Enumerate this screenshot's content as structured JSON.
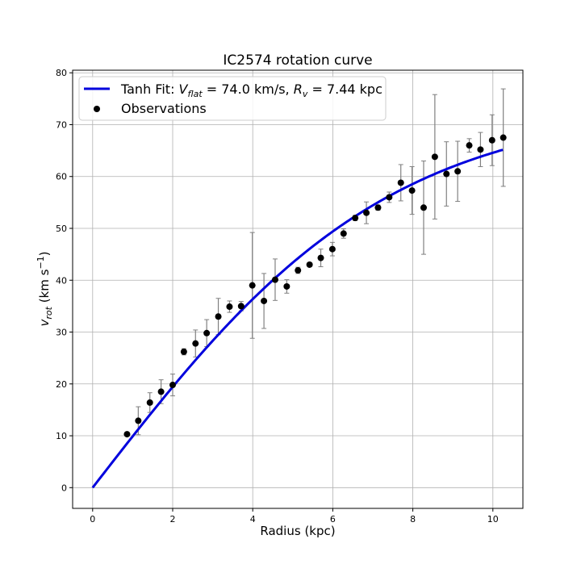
{
  "chart_data": {
    "type": "scatter",
    "title": "IC2574 rotation curve",
    "xlabel": "Radius (kpc)",
    "ylabel": "v_rot (km s^-1)",
    "xlim": [
      -0.5,
      10.75
    ],
    "ylim": [
      -4,
      80.5
    ],
    "x_ticks": [
      0,
      2,
      4,
      6,
      8,
      10
    ],
    "y_ticks": [
      0,
      10,
      20,
      30,
      40,
      50,
      60,
      70,
      80
    ],
    "grid": true,
    "legend_position": "top-left",
    "fit": {
      "name": "Tanh Fit",
      "model": "tanh",
      "V_flat": 74.0,
      "R_v": 7.44,
      "x_max": 10.25,
      "color": "#0000dd"
    },
    "observations": {
      "name": "Observations",
      "color": "#000000",
      "errorbar_color": "#808080",
      "x": [
        0.86,
        1.14,
        1.43,
        1.71,
        2.0,
        2.28,
        2.57,
        2.85,
        3.14,
        3.42,
        3.71,
        3.99,
        4.28,
        4.56,
        4.85,
        5.13,
        5.42,
        5.7,
        5.99,
        6.27,
        6.56,
        6.84,
        7.13,
        7.41,
        7.7,
        7.98,
        8.27,
        8.55,
        8.84,
        9.12,
        9.41,
        9.69,
        9.98,
        10.26
      ],
      "y": [
        10.3,
        12.9,
        16.4,
        18.5,
        19.8,
        26.2,
        27.8,
        29.8,
        33.0,
        34.9,
        35.0,
        39.0,
        36.0,
        40.1,
        38.8,
        41.9,
        43.0,
        44.3,
        46.0,
        49.0,
        52.0,
        53.0,
        54.0,
        56.0,
        58.8,
        57.3,
        54.0,
        63.8,
        60.5,
        61.0,
        66.0,
        65.2,
        67.0,
        67.5
      ],
      "err": [
        0.2,
        2.7,
        1.9,
        2.3,
        2.1,
        0.6,
        2.6,
        2.6,
        3.5,
        1.1,
        0.9,
        10.2,
        5.3,
        4.0,
        1.3,
        0.6,
        0.4,
        1.7,
        1.3,
        0.9,
        0.5,
        2.1,
        0.5,
        1.0,
        3.5,
        4.6,
        9.0,
        12.0,
        6.2,
        5.8,
        1.3,
        3.3,
        4.9,
        9.4
      ]
    }
  }
}
